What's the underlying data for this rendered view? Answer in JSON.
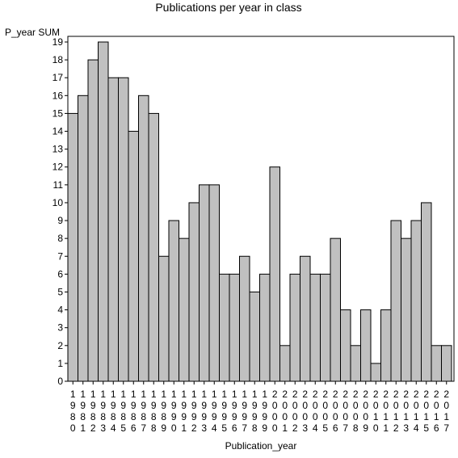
{
  "chart_data": {
    "type": "bar",
    "title": "Publications per year in class",
    "ylabel": "P_year SUM",
    "xlabel": "Publication_year",
    "ylim": [
      0,
      19
    ],
    "yticks": [
      0,
      1,
      2,
      3,
      4,
      5,
      6,
      7,
      8,
      9,
      10,
      11,
      12,
      13,
      14,
      15,
      16,
      17,
      18,
      19
    ],
    "grid": false,
    "legend": "none",
    "bar_color": "#c0c0c0",
    "categories": [
      "1980",
      "1981",
      "1982",
      "1983",
      "1984",
      "1985",
      "1986",
      "1987",
      "1988",
      "1989",
      "1990",
      "1991",
      "1992",
      "1993",
      "1994",
      "1995",
      "1996",
      "1997",
      "1998",
      "1999",
      "2000",
      "2001",
      "2002",
      "2003",
      "2004",
      "2005",
      "2006",
      "2007",
      "2008",
      "2009",
      "2010",
      "2011",
      "2012",
      "2013",
      "2014",
      "2015",
      "2016",
      "2017"
    ],
    "values": [
      15,
      16,
      18,
      19,
      17,
      17,
      14,
      16,
      15,
      7,
      9,
      8,
      10,
      11,
      11,
      6,
      6,
      7,
      5,
      6,
      12,
      2,
      6,
      7,
      6,
      6,
      8,
      4,
      2,
      4,
      1,
      4,
      9,
      8,
      9,
      10,
      2,
      2
    ]
  }
}
